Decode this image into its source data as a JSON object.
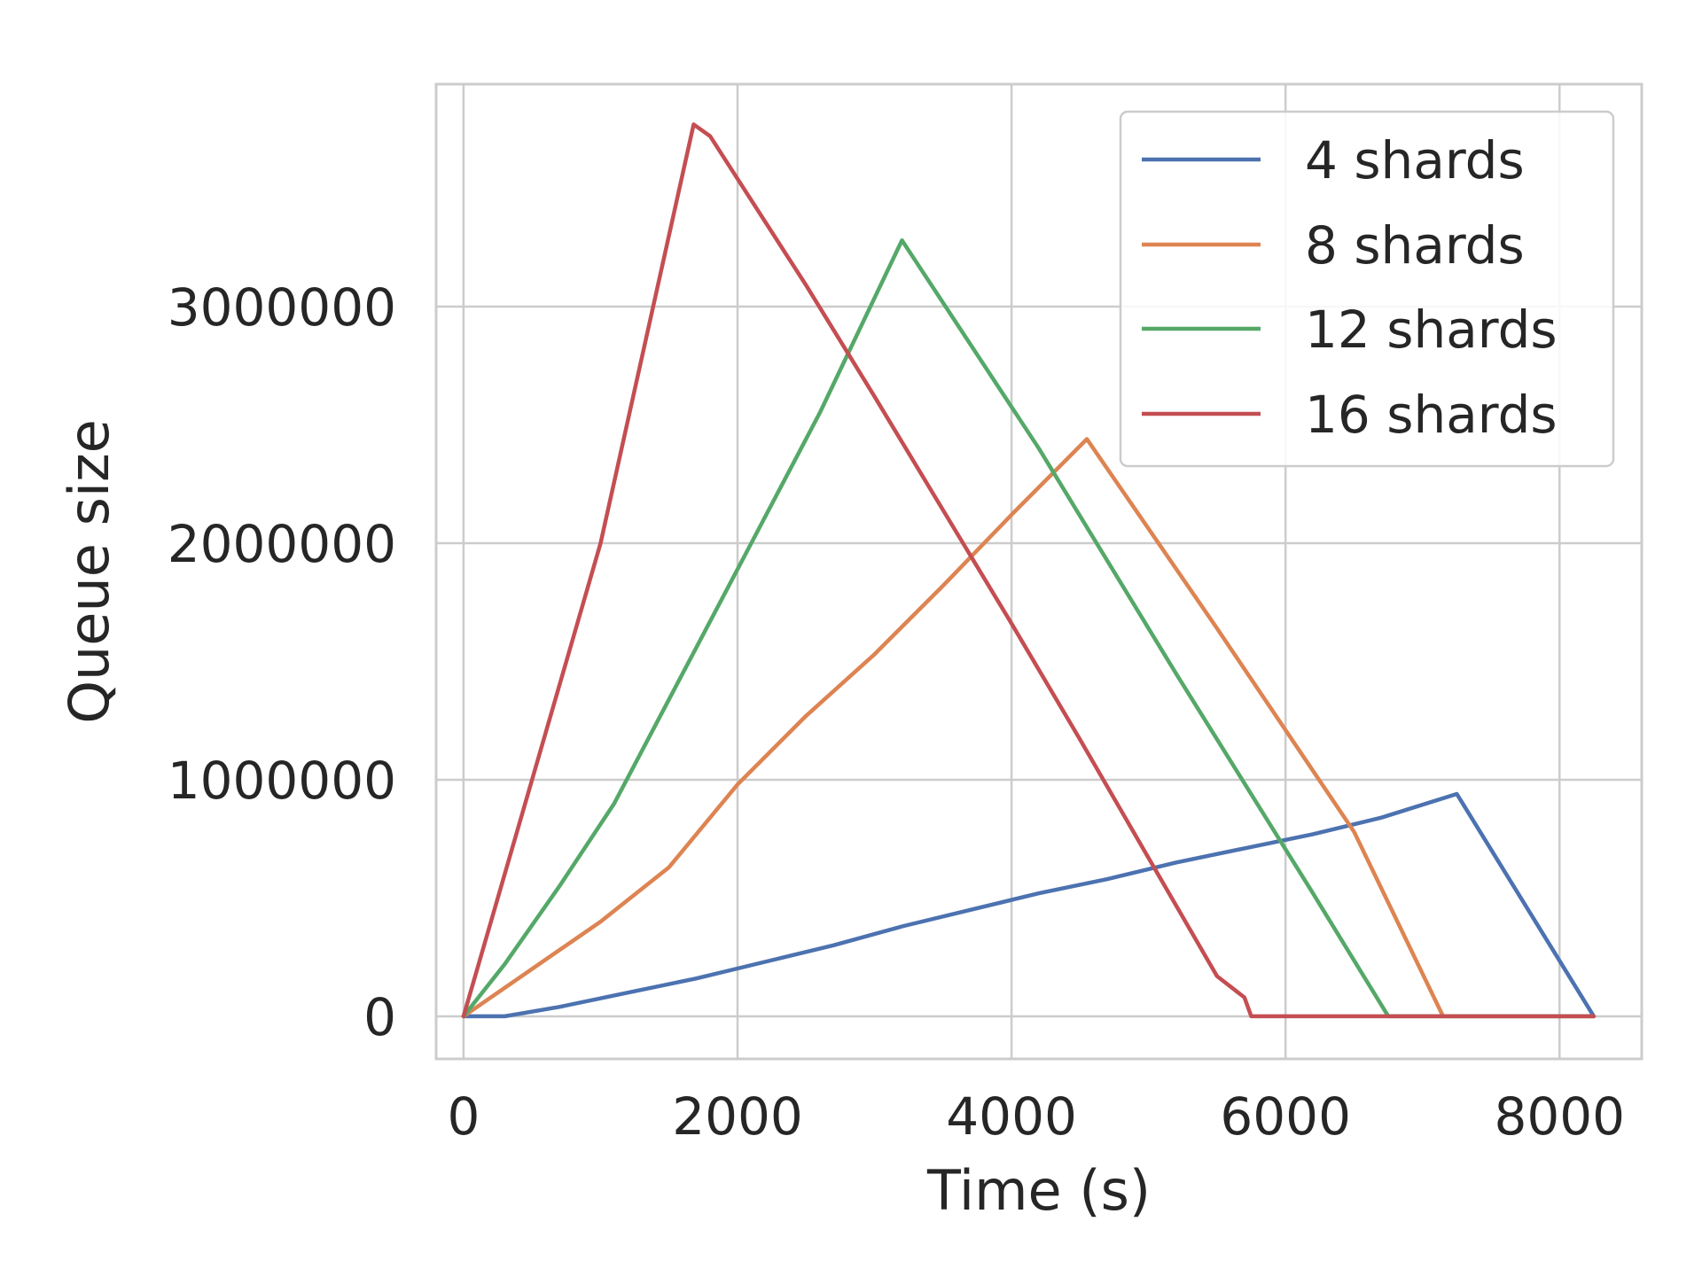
{
  "chart_data": {
    "type": "line",
    "title": "",
    "xlabel": "Time (s)",
    "ylabel": "Queue size",
    "xlim": [
      -200,
      8600
    ],
    "ylim": [
      -180000,
      3940000
    ],
    "xticks": [
      0,
      2000,
      4000,
      6000,
      8000
    ],
    "yticks": [
      0,
      1000000,
      2000000,
      3000000
    ],
    "xtick_labels": [
      "0",
      "2000",
      "4000",
      "6000",
      "8000"
    ],
    "ytick_labels": [
      "0",
      "1000000",
      "2000000",
      "3000000"
    ],
    "grid": true,
    "legend_position": "top-right",
    "series": [
      {
        "name": "4 shards",
        "color": "#4c72b0",
        "x": [
          0,
          300,
          700,
          1200,
          1700,
          2200,
          2700,
          3200,
          3700,
          4200,
          4700,
          5200,
          5700,
          6200,
          6700,
          7250,
          8250
        ],
        "y": [
          0,
          0,
          40000,
          100000,
          160000,
          230000,
          300000,
          380000,
          450000,
          520000,
          580000,
          650000,
          710000,
          770000,
          840000,
          940000,
          0
        ]
      },
      {
        "name": "8 shards",
        "color": "#dd8452",
        "x": [
          0,
          500,
          1000,
          1500,
          2000,
          2500,
          3000,
          3500,
          4000,
          4550,
          5500,
          6500,
          7150,
          8250
        ],
        "y": [
          0,
          200000,
          400000,
          630000,
          980000,
          1270000,
          1530000,
          1820000,
          2120000,
          2440000,
          1640000,
          780000,
          0,
          0
        ]
      },
      {
        "name": "12 shards",
        "color": "#55a868",
        "x": [
          0,
          300,
          700,
          1100,
          1600,
          2100,
          2600,
          3200,
          4200,
          5200,
          6200,
          6750,
          8250
        ],
        "y": [
          0,
          220000,
          550000,
          900000,
          1450000,
          2000000,
          2550000,
          3280000,
          2400000,
          1450000,
          520000,
          0,
          0
        ]
      },
      {
        "name": "16 shards",
        "color": "#c44e52",
        "x": [
          0,
          500,
          1000,
          1680,
          1800,
          2000,
          2500,
          3000,
          3500,
          4000,
          4500,
          5000,
          5500,
          5700,
          5750,
          8250
        ],
        "y": [
          0,
          1000000,
          2000000,
          3770000,
          3720000,
          3540000,
          3090000,
          2620000,
          2140000,
          1660000,
          1170000,
          670000,
          170000,
          80000,
          0,
          0
        ]
      }
    ]
  }
}
